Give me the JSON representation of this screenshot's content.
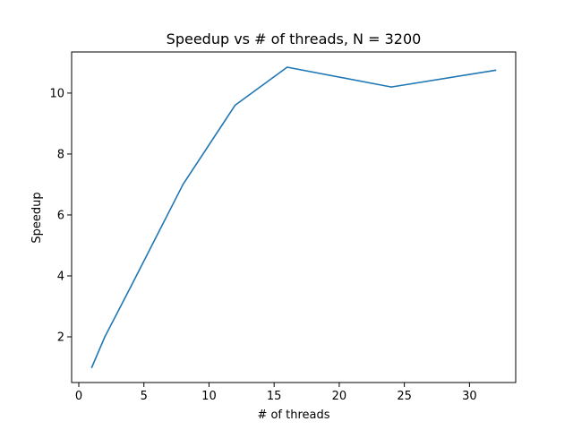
{
  "chart_data": {
    "type": "line",
    "title": "Speedup vs # of threads, N = 3200",
    "xlabel": "# of threads",
    "ylabel": "Speedup",
    "xlim": [
      -0.55,
      33.55
    ],
    "ylim": [
      0.5,
      11.35
    ],
    "xticks": [
      0,
      5,
      10,
      15,
      20,
      25,
      30
    ],
    "yticks": [
      2,
      4,
      6,
      8,
      10
    ],
    "grid": false,
    "line_color": "#1f77b4",
    "series": [
      {
        "x": [
          1,
          2,
          4,
          8,
          12,
          16,
          24,
          32
        ],
        "values": [
          1.0,
          2.0,
          3.65,
          7.0,
          9.6,
          10.85,
          10.2,
          10.75
        ]
      }
    ]
  }
}
